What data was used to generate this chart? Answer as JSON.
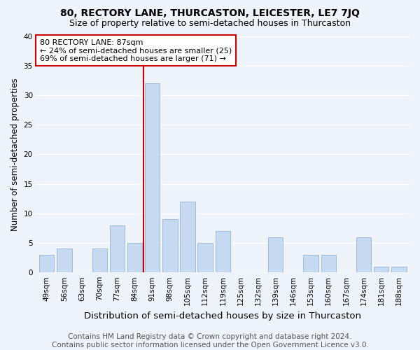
{
  "title": "80, RECTORY LANE, THURCASTON, LEICESTER, LE7 7JQ",
  "subtitle": "Size of property relative to semi-detached houses in Thurcaston",
  "xlabel": "Distribution of semi-detached houses by size in Thurcaston",
  "ylabel": "Number of semi-detached properties",
  "categories": [
    "49sqm",
    "56sqm",
    "63sqm",
    "70sqm",
    "77sqm",
    "84sqm",
    "91sqm",
    "98sqm",
    "105sqm",
    "112sqm",
    "119sqm",
    "125sqm",
    "132sqm",
    "139sqm",
    "146sqm",
    "153sqm",
    "160sqm",
    "167sqm",
    "174sqm",
    "181sqm",
    "188sqm"
  ],
  "values": [
    3,
    4,
    0,
    4,
    8,
    5,
    32,
    9,
    12,
    5,
    7,
    0,
    0,
    6,
    0,
    3,
    3,
    0,
    6,
    1,
    1
  ],
  "bar_color": "#c5d9f0",
  "bar_edge_color": "#a0badc",
  "vline_index": 6,
  "vline_color": "#cc0000",
  "annotation_text": "80 RECTORY LANE: 87sqm\n← 24% of semi-detached houses are smaller (25)\n69% of semi-detached houses are larger (71) →",
  "annotation_box_color": "#ffffff",
  "annotation_box_edge_color": "#cc0000",
  "footer_text": "Contains HM Land Registry data © Crown copyright and database right 2024.\nContains public sector information licensed under the Open Government Licence v3.0.",
  "ylim": [
    0,
    40
  ],
  "yticks": [
    0,
    5,
    10,
    15,
    20,
    25,
    30,
    35,
    40
  ],
  "bg_color": "#eef3fa",
  "grid_color": "#ffffff",
  "title_fontsize": 10,
  "subtitle_fontsize": 9,
  "xlabel_fontsize": 9.5,
  "ylabel_fontsize": 8.5,
  "tick_fontsize": 7.5,
  "annotation_fontsize": 8,
  "footer_fontsize": 7.5
}
